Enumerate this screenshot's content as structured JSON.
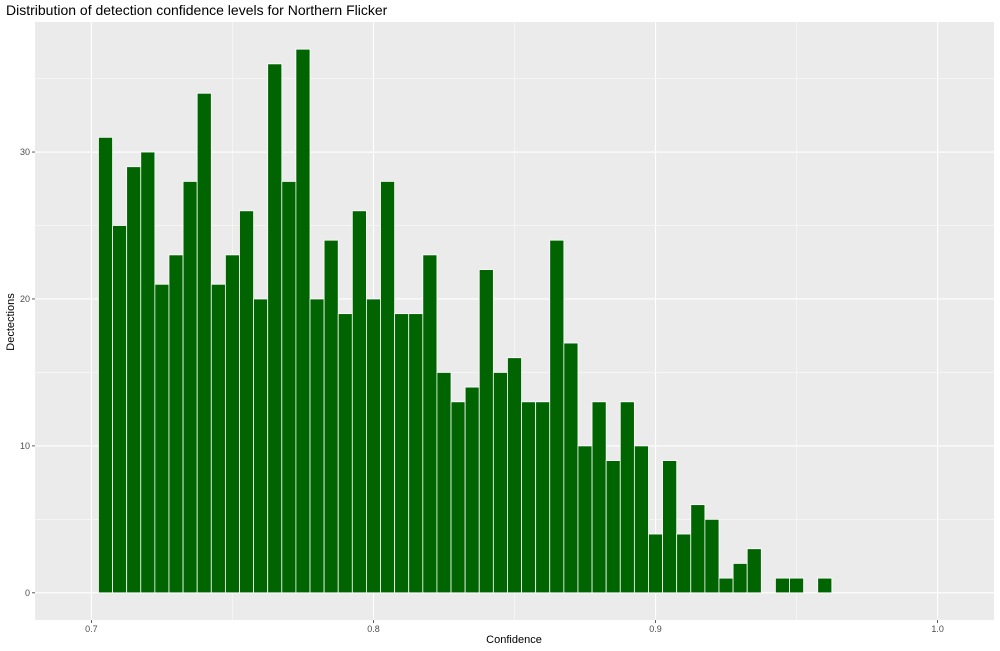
{
  "chart_data": {
    "type": "bar",
    "title": "Distribution of detection confidence levels for Northern Flicker",
    "xlabel": "Confidence",
    "ylabel": "Dectections",
    "xlim": [
      0.68,
      1.02
    ],
    "ylim": [
      -1.85,
      38.85
    ],
    "x_ticks": [
      0.7,
      0.8,
      0.9,
      1.0
    ],
    "x_tick_labels": [
      "0.7",
      "0.8",
      "0.9",
      "1.0"
    ],
    "y_ticks": [
      0,
      10,
      20,
      30
    ],
    "y_tick_labels": [
      "0",
      "10",
      "20",
      "30"
    ],
    "bin_width": 0.005,
    "bin_starts": [
      0.7025,
      0.7075,
      0.7125,
      0.7175,
      0.7225,
      0.7275,
      0.7325,
      0.7375,
      0.7425,
      0.7475,
      0.7525,
      0.7575,
      0.7625,
      0.7675,
      0.7725,
      0.7775,
      0.7825,
      0.7875,
      0.7925,
      0.7975,
      0.8025,
      0.8075,
      0.8125,
      0.8175,
      0.8225,
      0.8275,
      0.8325,
      0.8375,
      0.8425,
      0.8475,
      0.8525,
      0.8575,
      0.8625,
      0.8675,
      0.8725,
      0.8775,
      0.8825,
      0.8875,
      0.8925,
      0.8975,
      0.9025,
      0.9075,
      0.9125,
      0.9175,
      0.9225,
      0.9275,
      0.9325,
      0.9375,
      0.9425,
      0.9475,
      0.9525,
      0.9575
    ],
    "values": [
      31,
      25,
      29,
      30,
      21,
      23,
      28,
      34,
      21,
      23,
      26,
      20,
      36,
      28,
      37,
      20,
      24,
      19,
      26,
      20,
      28,
      19,
      19,
      23,
      15,
      13,
      14,
      22,
      15,
      16,
      13,
      13,
      24,
      17,
      10,
      13,
      9,
      13,
      10,
      4,
      9,
      4,
      6,
      5,
      1,
      2,
      3,
      0,
      1,
      1,
      0,
      1
    ],
    "bar_fill": "#006400",
    "bar_outline": "#ffffff",
    "panel_background": "#ebebeb",
    "grid_color": "#ffffff",
    "grid": true,
    "legend": "none"
  }
}
